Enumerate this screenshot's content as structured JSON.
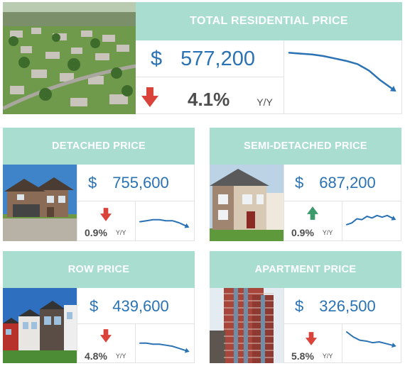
{
  "colors": {
    "header_bg": "#a8ddd0",
    "header_text": "#ffffff",
    "price_text": "#2a72b3",
    "trend_line": "#2a72b3",
    "down_arrow": "#d9433a",
    "up_arrow": "#3c9a6c",
    "change_text": "#4d4d4d"
  },
  "total": {
    "title": "TOTAL RESIDENTIAL PRICE",
    "currency": "$",
    "price": "577,200",
    "change": "4.1%",
    "change_label": "Y/Y",
    "direction": "down",
    "image_icon": "aerial-neighborhood-photo",
    "trend": [
      10,
      11,
      12,
      14,
      17,
      20,
      24,
      32,
      44,
      54
    ]
  },
  "detached": {
    "title": "DETACHED PRICE",
    "currency": "$",
    "price": "755,600",
    "change": "0.9%",
    "change_label": "Y/Y",
    "direction": "down",
    "image_icon": "detached-house-photo",
    "trend": [
      14,
      13,
      12,
      12,
      13,
      13,
      15,
      18
    ]
  },
  "semi": {
    "title": "SEMI-DETACHED PRICE",
    "currency": "$",
    "price": "687,200",
    "change": "0.9%",
    "change_label": "Y/Y",
    "direction": "up",
    "image_icon": "semi-detached-house-photo",
    "trend": [
      22,
      20,
      15,
      16,
      12,
      14,
      11,
      13,
      11,
      14
    ]
  },
  "row": {
    "title": "ROW PRICE",
    "currency": "$",
    "price": "439,600",
    "change": "4.8%",
    "change_label": "Y/Y",
    "direction": "down",
    "image_icon": "row-houses-photo",
    "trend": [
      10,
      10,
      11,
      11,
      12,
      13,
      15,
      17
    ]
  },
  "apartment": {
    "title": "APARTMENT PRICE",
    "currency": "$",
    "price": "326,500",
    "change": "5.8%",
    "change_label": "Y/Y",
    "direction": "down",
    "image_icon": "apartment-tower-photo",
    "trend": [
      6,
      12,
      16,
      17,
      19,
      18,
      20,
      22
    ]
  }
}
